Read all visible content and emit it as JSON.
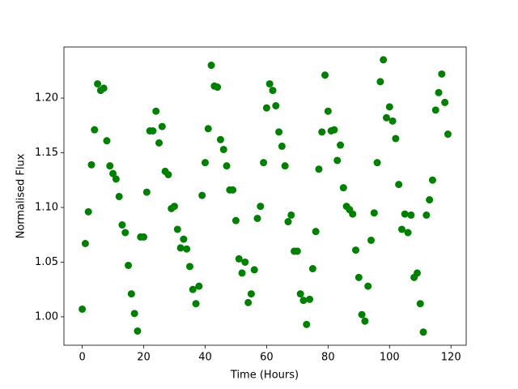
{
  "chart_data": {
    "type": "scatter",
    "xlabel": "Time (Hours)",
    "ylabel": "Normalised Flux",
    "x": [
      0,
      1,
      2,
      3,
      4,
      5,
      6,
      7,
      8,
      9,
      10,
      11,
      12,
      13,
      14,
      15,
      16,
      17,
      18,
      19,
      20,
      21,
      22,
      23,
      24,
      25,
      26,
      27,
      28,
      29,
      30,
      31,
      32,
      33,
      34,
      35,
      36,
      37,
      38,
      39,
      40,
      41,
      42,
      43,
      44,
      45,
      46,
      47,
      48,
      49,
      50,
      51,
      52,
      53,
      54,
      55,
      56,
      57,
      58,
      59,
      60,
      61,
      62,
      63,
      64,
      65,
      66,
      67,
      68,
      69,
      70,
      71,
      72,
      73,
      74,
      75,
      76,
      77,
      78,
      79,
      80,
      81,
      82,
      83,
      84,
      85,
      86,
      87,
      88,
      89,
      90,
      91,
      92,
      93,
      94,
      95,
      96,
      97,
      98,
      99,
      100,
      101,
      102,
      103,
      104,
      105,
      106,
      107,
      108,
      109,
      110,
      111,
      112,
      113,
      114,
      115,
      116,
      117,
      118,
      119
    ],
    "values": [
      1.007,
      1.067,
      1.096,
      1.139,
      1.171,
      1.213,
      1.207,
      1.209,
      1.161,
      1.138,
      1.131,
      1.126,
      1.11,
      1.084,
      1.077,
      1.047,
      1.021,
      1.003,
      0.987,
      1.073,
      1.073,
      1.114,
      1.17,
      1.17,
      1.188,
      1.159,
      1.174,
      1.133,
      1.13,
      1.099,
      1.101,
      1.08,
      1.063,
      1.071,
      1.062,
      1.046,
      1.025,
      1.012,
      1.028,
      1.111,
      1.141,
      1.172,
      1.23,
      1.211,
      1.21,
      1.162,
      1.153,
      1.138,
      1.116,
      1.116,
      1.088,
      1.053,
      1.04,
      1.05,
      1.013,
      1.021,
      1.043,
      1.09,
      1.101,
      1.141,
      1.191,
      1.213,
      1.207,
      1.193,
      1.169,
      1.156,
      1.138,
      1.087,
      1.093,
      1.06,
      1.06,
      1.021,
      1.015,
      0.993,
      1.016,
      1.044,
      1.078,
      1.135,
      1.169,
      1.221,
      1.188,
      1.17,
      1.171,
      1.143,
      1.157,
      1.118,
      1.101,
      1.098,
      1.094,
      1.061,
      1.036,
      1.002,
      0.996,
      1.028,
      1.07,
      1.095,
      1.141,
      1.215,
      1.235,
      1.182,
      1.192,
      1.179,
      1.163,
      1.121,
      1.08,
      1.094,
      1.077,
      1.093,
      1.036,
      1.04,
      1.012,
      0.986,
      1.093,
      1.107,
      1.125,
      1.189,
      1.205,
      1.222,
      1.196,
      1.167
    ],
    "color": "#008000",
    "xlim": [
      -5.95,
      124.95
    ],
    "xticks": [
      0,
      20,
      40,
      60,
      80,
      100,
      120
    ],
    "ylim": [
      0.974,
      1.2467
    ],
    "yticks": [
      {
        "value": 1,
        "label": "1.00"
      },
      1.05,
      {
        "value": 1.1,
        "label": "1.10"
      },
      1.15,
      {
        "value": 1.2,
        "label": "1.20"
      }
    ]
  }
}
